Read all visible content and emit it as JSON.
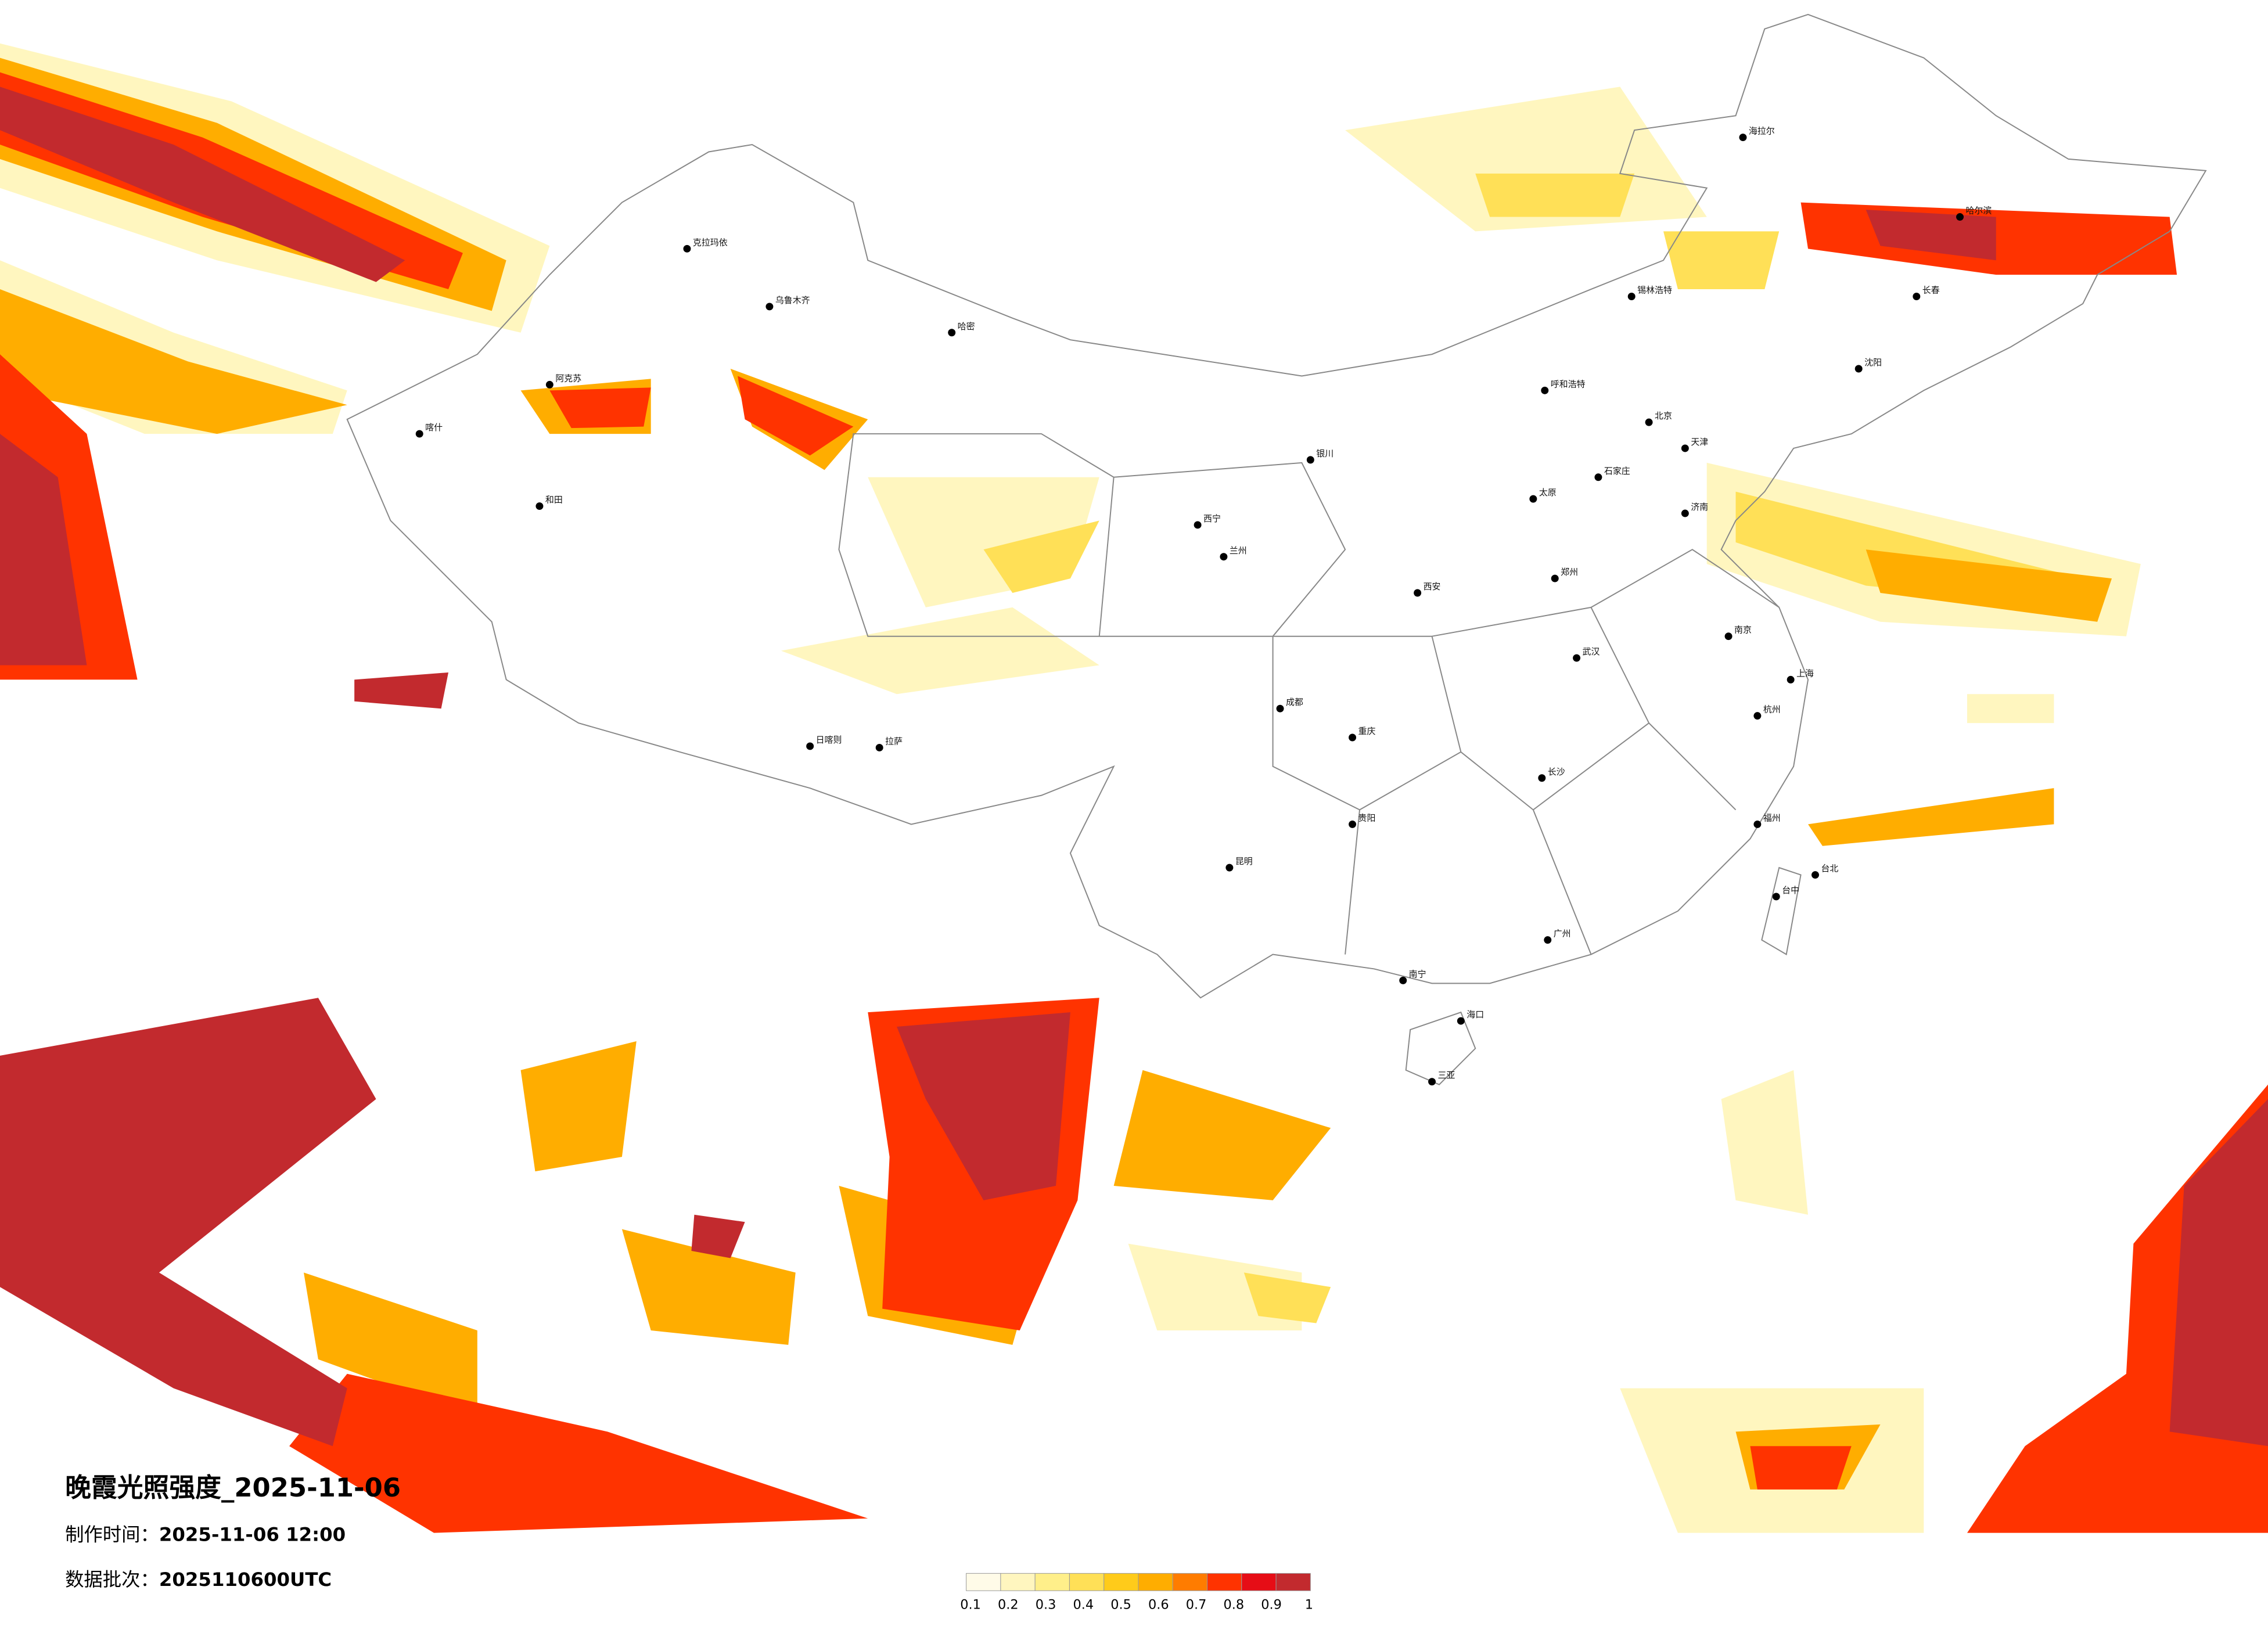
{
  "map": {
    "title": "晚霞光照强度_2025-11-06",
    "production_time": {
      "label": "制作时间：",
      "value": "2025-11-06 12:00"
    },
    "data_batch": {
      "label": "数据批次：",
      "value": "2025110600UTC"
    },
    "colorbar": {
      "ticks": [
        0.1,
        0.2,
        0.3,
        0.4,
        0.5,
        0.6,
        0.7,
        0.8,
        0.9,
        1
      ],
      "colors": [
        "#fffbe8",
        "#fff6bf",
        "#ffef8a",
        "#ffe057",
        "#ffcb1a",
        "#ffad00",
        "#ff7c00",
        "#ff3300",
        "#e60d16",
        "#c22a2e"
      ]
    },
    "cities": [
      "克拉玛依",
      "乌鲁木齐",
      "阿克苏",
      "和田",
      "喀什",
      "哈密",
      "拉萨",
      "日喀则",
      "西宁",
      "兰州",
      "银川",
      "呼和浩特",
      "北京",
      "天津",
      "石家庄",
      "太原",
      "郑州",
      "济南",
      "西安",
      "成都",
      "重庆",
      "武汉",
      "长沙",
      "南京",
      "上海",
      "杭州",
      "福州",
      "广州",
      "南宁",
      "昆明",
      "贵阳",
      "海口",
      "三亚",
      "哈尔滨",
      "长春",
      "沈阳",
      "台北",
      "台中",
      "锡林浩特",
      "海拉尔"
    ]
  }
}
